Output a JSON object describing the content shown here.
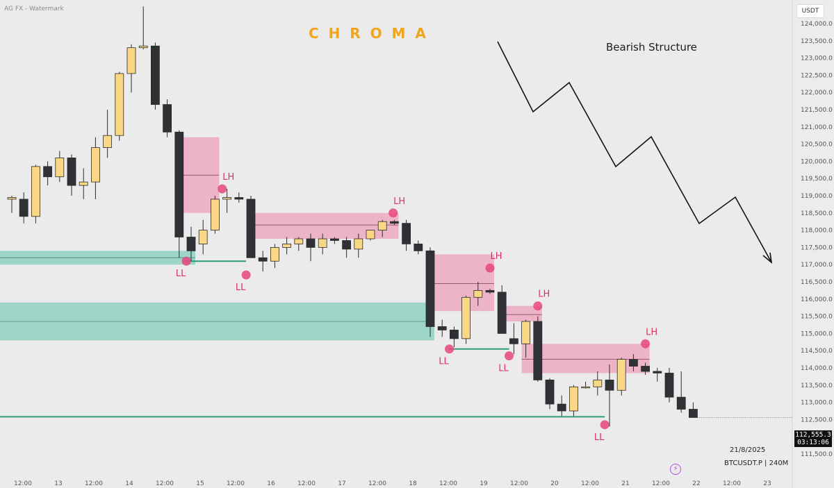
{
  "header": {
    "watermark": "AG FX - Watermark",
    "brand": "C  H  R  O  M  A",
    "currency_button": "USDT"
  },
  "annotation": "Bearish Structure",
  "info": {
    "date": "21/8/2025",
    "symbol": "BTCUSDT.P | 240M"
  },
  "price_tag": {
    "price": "112,555.3",
    "countdown": "03:13:06"
  },
  "icons": {
    "bolt": "lightning-bolt-icon"
  },
  "colors": {
    "bull": "#fad785",
    "bear": "#2f3136",
    "supply_zone": "#ef8fb0",
    "demand_zone": "#8fd1c2",
    "swing_marker": "#e8467b",
    "liquidity_line": "#2e9b7e",
    "background": "#ebebeb"
  },
  "chart_data": {
    "type": "candlestick",
    "title": "",
    "symbol": "BTCUSDT.P",
    "timeframe": "240M",
    "ylim": [
      111300,
      124600
    ],
    "y_ticks": [
      111500,
      112000,
      112500,
      113000,
      113500,
      114000,
      114500,
      115000,
      115500,
      116000,
      116500,
      117000,
      117500,
      118000,
      118500,
      119000,
      119500,
      120000,
      120500,
      121000,
      121500,
      122000,
      122500,
      123000,
      123500,
      124000
    ],
    "y_tick_labels": [
      "111,500.0",
      "112,000.0",
      "112,500.0",
      "113,000.0",
      "113,500.0",
      "114,000.0",
      "114,500.0",
      "115,000.0",
      "115,500.0",
      "116,000.0",
      "116,500.0",
      "117,000.0",
      "117,500.0",
      "118,000.0",
      "118,500.0",
      "119,000.0",
      "119,500.0",
      "120,000.0",
      "120,500.0",
      "121,000.0",
      "121,500.0",
      "122,000.0",
      "122,500.0",
      "123,000.0",
      "123,500.0",
      "124,000.0"
    ],
    "x_labels": [
      "12:00",
      "13",
      "12:00",
      "14",
      "12:00",
      "15",
      "12:00",
      "16",
      "12:00",
      "17",
      "12:00",
      "18",
      "12:00",
      "19",
      "12:00",
      "20",
      "12:00",
      "21",
      "12:00",
      "22",
      "12:00",
      "23"
    ],
    "candles": [
      {
        "i": 0,
        "o": 118900,
        "h": 119000,
        "l": 118500,
        "c": 118950
      },
      {
        "i": 1,
        "o": 118900,
        "h": 119100,
        "l": 118200,
        "c": 118400
      },
      {
        "i": 2,
        "o": 118400,
        "h": 119900,
        "l": 118200,
        "c": 119850
      },
      {
        "i": 3,
        "o": 119850,
        "h": 120000,
        "l": 119300,
        "c": 119550
      },
      {
        "i": 4,
        "o": 119550,
        "h": 120300,
        "l": 119400,
        "c": 120100
      },
      {
        "i": 5,
        "o": 120100,
        "h": 120200,
        "l": 119000,
        "c": 119300
      },
      {
        "i": 6,
        "o": 119300,
        "h": 119800,
        "l": 118900,
        "c": 119400
      },
      {
        "i": 7,
        "o": 119400,
        "h": 120700,
        "l": 118900,
        "c": 120400
      },
      {
        "i": 8,
        "o": 120400,
        "h": 121500,
        "l": 120100,
        "c": 120750
      },
      {
        "i": 9,
        "o": 120750,
        "h": 122600,
        "l": 120600,
        "c": 122550
      },
      {
        "i": 10,
        "o": 122550,
        "h": 123400,
        "l": 122000,
        "c": 123300
      },
      {
        "i": 11,
        "o": 123300,
        "h": 124500,
        "l": 123250,
        "c": 123350
      },
      {
        "i": 12,
        "o": 123350,
        "h": 123450,
        "l": 121500,
        "c": 121650
      },
      {
        "i": 13,
        "o": 121650,
        "h": 121800,
        "l": 120700,
        "c": 120850
      },
      {
        "i": 14,
        "o": 120850,
        "h": 120900,
        "l": 117200,
        "c": 117800
      },
      {
        "i": 15,
        "o": 117800,
        "h": 118100,
        "l": 117100,
        "c": 117400
      },
      {
        "i": 16,
        "o": 117600,
        "h": 118300,
        "l": 117300,
        "c": 118000
      },
      {
        "i": 17,
        "o": 118000,
        "h": 119000,
        "l": 117900,
        "c": 118900
      },
      {
        "i": 18,
        "o": 118900,
        "h": 119200,
        "l": 118500,
        "c": 118950
      },
      {
        "i": 19,
        "o": 118950,
        "h": 119100,
        "l": 118800,
        "c": 118900
      },
      {
        "i": 20,
        "o": 118900,
        "h": 119000,
        "l": 117200,
        "c": 117200
      },
      {
        "i": 21,
        "o": 117200,
        "h": 117400,
        "l": 116800,
        "c": 117100
      },
      {
        "i": 22,
        "o": 117100,
        "h": 117600,
        "l": 116900,
        "c": 117500
      },
      {
        "i": 23,
        "o": 117500,
        "h": 117800,
        "l": 117300,
        "c": 117600
      },
      {
        "i": 24,
        "o": 117600,
        "h": 117800,
        "l": 117400,
        "c": 117750
      },
      {
        "i": 25,
        "o": 117750,
        "h": 117900,
        "l": 117100,
        "c": 117500
      },
      {
        "i": 26,
        "o": 117500,
        "h": 117900,
        "l": 117300,
        "c": 117750
      },
      {
        "i": 27,
        "o": 117750,
        "h": 117800,
        "l": 117600,
        "c": 117700
      },
      {
        "i": 28,
        "o": 117700,
        "h": 117800,
        "l": 117200,
        "c": 117450
      },
      {
        "i": 29,
        "o": 117450,
        "h": 117900,
        "l": 117200,
        "c": 117750
      },
      {
        "i": 30,
        "o": 117750,
        "h": 118000,
        "l": 117700,
        "c": 118000
      },
      {
        "i": 31,
        "o": 118000,
        "h": 118300,
        "l": 117800,
        "c": 118250
      },
      {
        "i": 32,
        "o": 118250,
        "h": 118300,
        "l": 118150,
        "c": 118200
      },
      {
        "i": 33,
        "o": 118200,
        "h": 118300,
        "l": 117400,
        "c": 117600
      },
      {
        "i": 34,
        "o": 117600,
        "h": 117700,
        "l": 117300,
        "c": 117400
      },
      {
        "i": 35,
        "o": 117400,
        "h": 117500,
        "l": 114900,
        "c": 115200
      },
      {
        "i": 36,
        "o": 115200,
        "h": 115400,
        "l": 114900,
        "c": 115100
      },
      {
        "i": 37,
        "o": 115100,
        "h": 115200,
        "l": 114600,
        "c": 114850
      },
      {
        "i": 38,
        "o": 114850,
        "h": 116100,
        "l": 114700,
        "c": 116050
      },
      {
        "i": 39,
        "o": 116050,
        "h": 116500,
        "l": 115800,
        "c": 116250
      },
      {
        "i": 40,
        "o": 116250,
        "h": 116300,
        "l": 116150,
        "c": 116200
      },
      {
        "i": 41,
        "o": 116200,
        "h": 116400,
        "l": 115100,
        "c": 115000
      },
      {
        "i": 42,
        "o": 114850,
        "h": 115300,
        "l": 114400,
        "c": 114700
      },
      {
        "i": 43,
        "o": 114700,
        "h": 115400,
        "l": 114300,
        "c": 115350
      },
      {
        "i": 44,
        "o": 115350,
        "h": 115500,
        "l": 113600,
        "c": 113650
      },
      {
        "i": 45,
        "o": 113650,
        "h": 113700,
        "l": 112800,
        "c": 112950
      },
      {
        "i": 46,
        "o": 112950,
        "h": 113200,
        "l": 112600,
        "c": 112750
      },
      {
        "i": 47,
        "o": 112750,
        "h": 113500,
        "l": 112600,
        "c": 113450
      },
      {
        "i": 48,
        "o": 113450,
        "h": 113600,
        "l": 113400,
        "c": 113450
      },
      {
        "i": 49,
        "o": 113450,
        "h": 113900,
        "l": 113200,
        "c": 113650
      },
      {
        "i": 50,
        "o": 113650,
        "h": 114100,
        "l": 112300,
        "c": 113350
      },
      {
        "i": 51,
        "o": 113350,
        "h": 114300,
        "l": 113200,
        "c": 114250
      },
      {
        "i": 52,
        "o": 114250,
        "h": 114400,
        "l": 113900,
        "c": 114050
      },
      {
        "i": 53,
        "o": 114050,
        "h": 114150,
        "l": 113800,
        "c": 113900
      },
      {
        "i": 54,
        "o": 113900,
        "h": 114000,
        "l": 113600,
        "c": 113850
      },
      {
        "i": 55,
        "o": 113850,
        "h": 114000,
        "l": 113000,
        "c": 113150
      },
      {
        "i": 56,
        "o": 113150,
        "h": 113900,
        "l": 112700,
        "c": 112800
      },
      {
        "i": 57,
        "o": 112800,
        "h": 113000,
        "l": 112550,
        "c": 112560
      }
    ],
    "supply_zones": [
      {
        "from": 14,
        "to": 17,
        "top": 120700,
        "bottom": 118500,
        "mid": 119600
      },
      {
        "from": 20,
        "to": 32,
        "top": 118500,
        "bottom": 117750,
        "mid": 118150
      },
      {
        "from": 35,
        "to": 40,
        "top": 117300,
        "bottom": 115650,
        "mid": 116450
      },
      {
        "from": 41,
        "to": 44,
        "top": 115800,
        "bottom": 115350,
        "mid": 115550
      },
      {
        "from": 43,
        "to": 53,
        "top": 114700,
        "bottom": 113850,
        "mid": 114250
      }
    ],
    "demand_zones": [
      {
        "from": -1,
        "to": 15,
        "top": 117400,
        "bottom": 117000,
        "mid": 117200
      },
      {
        "from": -1,
        "to": 35,
        "top": 115900,
        "bottom": 114800,
        "mid": 115350
      }
    ],
    "swing_points": [
      {
        "label": "LH",
        "i": 17.6,
        "price": 119200,
        "type": "high"
      },
      {
        "label": "LH",
        "i": 31.9,
        "price": 118500,
        "type": "high"
      },
      {
        "label": "LH",
        "i": 40.0,
        "price": 116900,
        "type": "high"
      },
      {
        "label": "LH",
        "i": 44.0,
        "price": 115800,
        "type": "high"
      },
      {
        "label": "LH",
        "i": 53.0,
        "price": 114700,
        "type": "high"
      },
      {
        "label": "LL",
        "i": 14.6,
        "price": 117100,
        "type": "low"
      },
      {
        "label": "LL",
        "i": 19.6,
        "price": 116700,
        "type": "low"
      },
      {
        "label": "LL",
        "i": 36.6,
        "price": 114550,
        "type": "low"
      },
      {
        "label": "LL",
        "i": 41.6,
        "price": 114350,
        "type": "low"
      },
      {
        "label": "LL",
        "i": 49.6,
        "price": 112350,
        "type": "low"
      }
    ],
    "liquidity_lines": [
      {
        "from": 14.6,
        "to": 19.6,
        "price": 117100
      },
      {
        "from": 36.6,
        "to": 41.6,
        "price": 114550
      },
      {
        "from": -1,
        "to": 49.6,
        "price": 112580
      }
    ],
    "current_price": 112555.3
  }
}
